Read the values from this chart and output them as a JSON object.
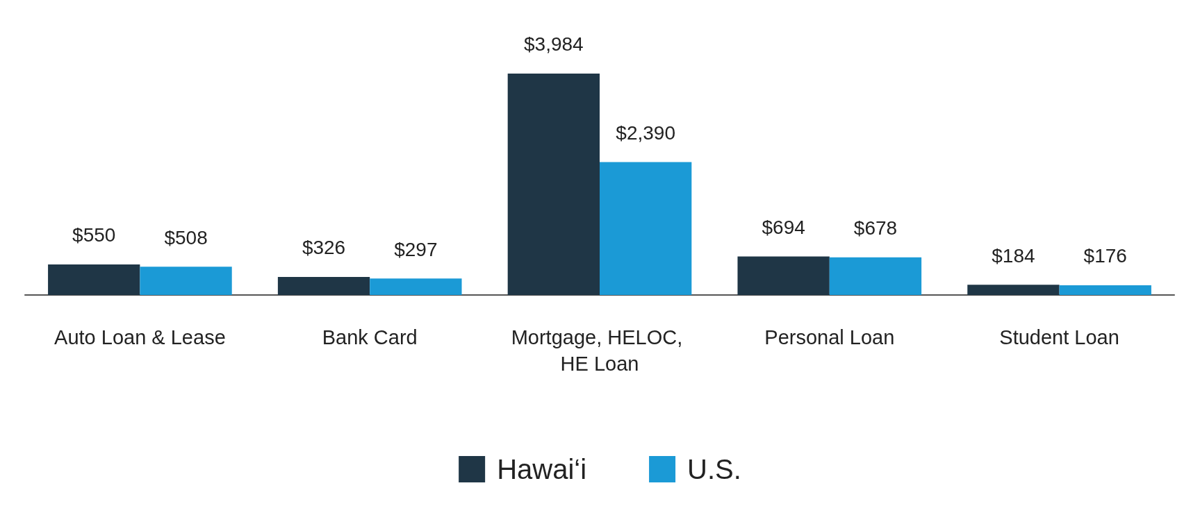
{
  "chart_data": {
    "type": "bar",
    "categories": [
      "Auto Loan & Lease",
      "Bank Card",
      "Mortgage, HELOC, HE Loan",
      "Personal Loan",
      "Student Loan"
    ],
    "series": [
      {
        "name": "Hawai‘i",
        "color": "#1f3646",
        "values": [
          550,
          326,
          3984,
          694,
          184
        ],
        "value_labels": [
          "$550",
          "$326",
          "$3,984",
          "$694",
          "$184"
        ]
      },
      {
        "name": "U.S.",
        "color": "#1b9ad6",
        "values": [
          508,
          297,
          2390,
          678,
          176
        ],
        "value_labels": [
          "$508",
          "$297",
          "$2,390",
          "$678",
          "$176"
        ]
      }
    ],
    "legend": "bottom"
  }
}
